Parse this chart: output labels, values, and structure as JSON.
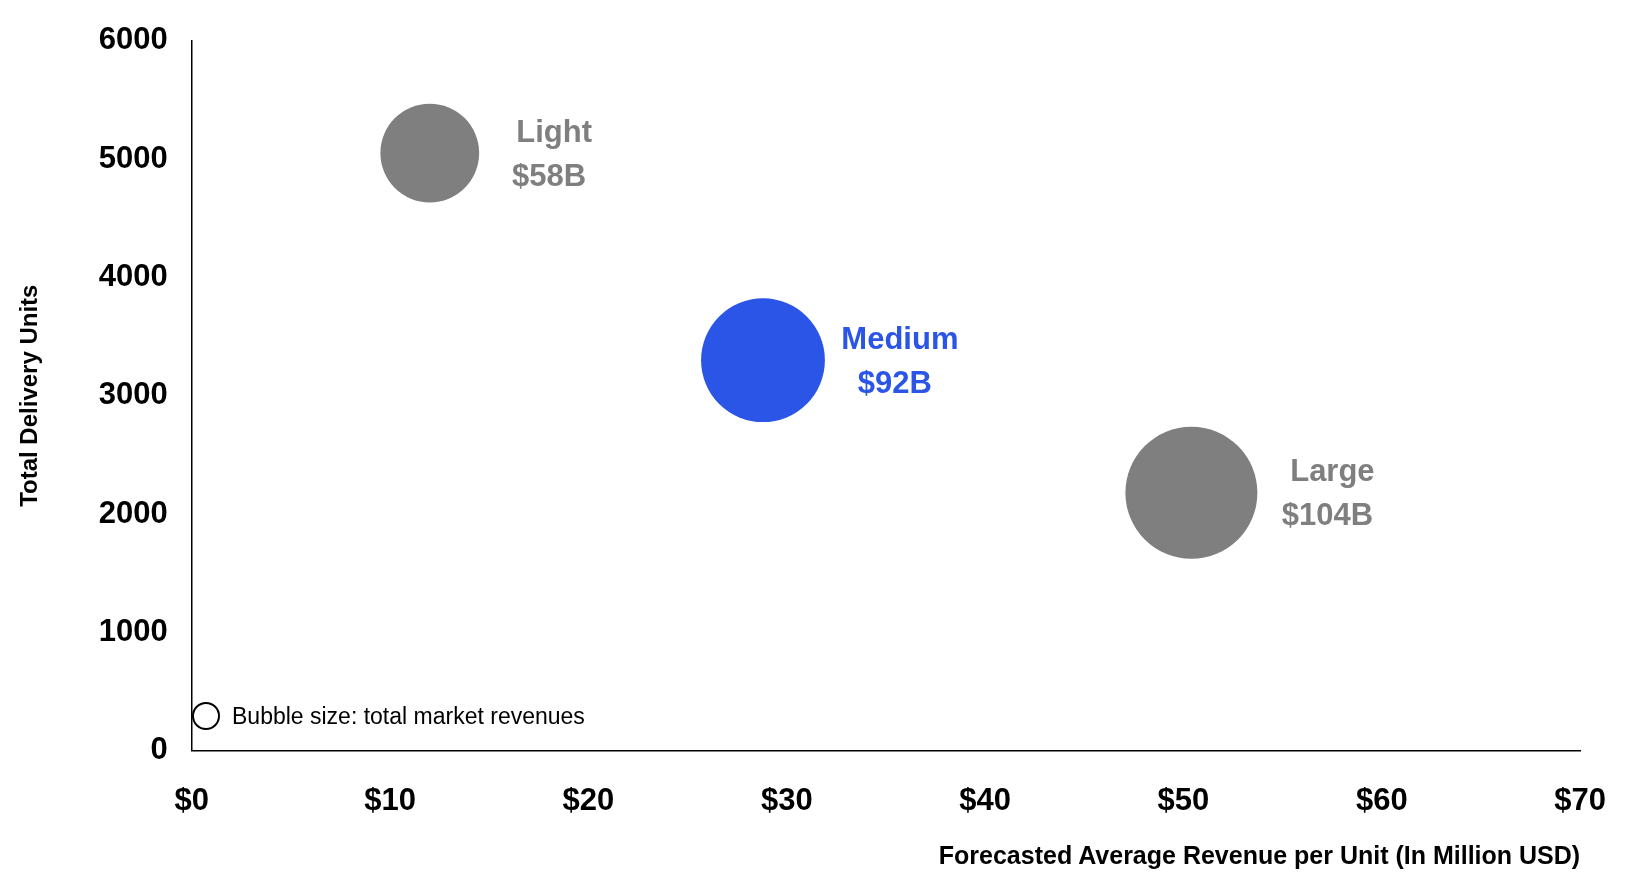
{
  "chart_data": {
    "type": "bubble",
    "xlabel": "Forecasted Average Revenue per Unit (In Million USD)",
    "ylabel": "Total Delivery Units",
    "xlim": [
      0,
      70
    ],
    "xticks": [
      {
        "value": 0,
        "label": "$0"
      },
      {
        "value": 10,
        "label": "$10"
      },
      {
        "value": 20,
        "label": "$20"
      },
      {
        "value": 30,
        "label": "$30"
      },
      {
        "value": 40,
        "label": "$40"
      },
      {
        "value": 50,
        "label": "$50"
      },
      {
        "value": 60,
        "label": "$60"
      },
      {
        "value": 70,
        "label": "$70"
      }
    ],
    "ylim": [
      0,
      6000
    ],
    "yticks": [
      0,
      1000,
      2000,
      3000,
      4000,
      5000,
      6000
    ],
    "grid": false,
    "legend": false,
    "annotations": [
      "Bubble size: total market revenues",
      "$58B",
      "$92B",
      "$104B"
    ],
    "series": [
      {
        "name": "Light",
        "color": "#7f7f7f",
        "x": [
          12
        ],
        "values": [
          5050
        ],
        "sizes": [
          0.56
        ]
      },
      {
        "name": "Medium",
        "color": "#2a55e6",
        "x": [
          28.8
        ],
        "values": [
          3300
        ],
        "sizes": [
          0.88
        ]
      },
      {
        "name": "Large",
        "color": "#7f7f7f",
        "x": [
          50.4
        ],
        "values": [
          2180
        ],
        "sizes": [
          1
        ]
      }
    ]
  }
}
